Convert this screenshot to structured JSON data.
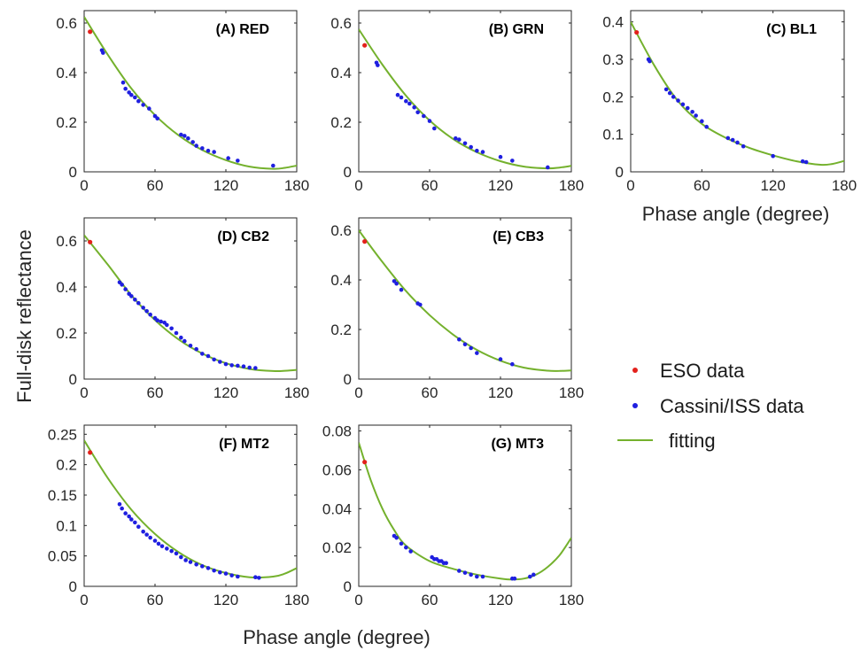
{
  "figure": {
    "ylabel": "Full-disk reflectance",
    "xlabel": "Phase angle (degree)"
  },
  "legend": {
    "placement": "right-middle",
    "entries": [
      {
        "label": "ESO data",
        "color": "#e3211c",
        "kind": "marker"
      },
      {
        "label": "Cassini/ISS data",
        "color": "#1f1fe0",
        "kind": "marker"
      },
      {
        "label": "fitting",
        "color": "#74b12d",
        "kind": "line"
      }
    ]
  },
  "colors": {
    "eso": "#e3211c",
    "cassini": "#1f1fe0",
    "fit": "#74b12d",
    "axis": "#262626"
  },
  "chart_data": [
    {
      "type": "scatter",
      "label": "(A) RED",
      "xlim": [
        0,
        180
      ],
      "ylim": [
        0,
        0.65
      ],
      "xticks": [
        0,
        60,
        120,
        180
      ],
      "yticks": [
        0,
        0.2,
        0.4,
        0.6
      ],
      "ytick_labels": [
        "0",
        "0.2",
        "0.4",
        "0.6"
      ],
      "show_xlabel": false,
      "eso": [
        [
          5,
          0.565
        ]
      ],
      "cassini": [
        [
          15,
          0.49
        ],
        [
          16,
          0.48
        ],
        [
          33,
          0.36
        ],
        [
          35,
          0.335
        ],
        [
          38,
          0.32
        ],
        [
          40,
          0.31
        ],
        [
          43,
          0.3
        ],
        [
          46,
          0.285
        ],
        [
          50,
          0.27
        ],
        [
          55,
          0.255
        ],
        [
          60,
          0.225
        ],
        [
          62,
          0.215
        ],
        [
          82,
          0.15
        ],
        [
          85,
          0.145
        ],
        [
          88,
          0.135
        ],
        [
          92,
          0.12
        ],
        [
          95,
          0.105
        ],
        [
          100,
          0.095
        ],
        [
          105,
          0.085
        ],
        [
          110,
          0.08
        ],
        [
          122,
          0.055
        ],
        [
          130,
          0.045
        ],
        [
          160,
          0.025
        ]
      ],
      "fit": [
        [
          0,
          0.625
        ],
        [
          20,
          0.472
        ],
        [
          40,
          0.336
        ],
        [
          60,
          0.229
        ],
        [
          80,
          0.147
        ],
        [
          100,
          0.088
        ],
        [
          120,
          0.047
        ],
        [
          140,
          0.021
        ],
        [
          160,
          0.012
        ],
        [
          170,
          0.016
        ],
        [
          180,
          0.025
        ]
      ]
    },
    {
      "type": "scatter",
      "label": "(B) GRN",
      "xlim": [
        0,
        180
      ],
      "ylim": [
        0,
        0.65
      ],
      "xticks": [
        0,
        60,
        120,
        180
      ],
      "yticks": [
        0,
        0.2,
        0.4,
        0.6
      ],
      "ytick_labels": [
        "0",
        "0.2",
        "0.4",
        "0.6"
      ],
      "show_xlabel": false,
      "eso": [
        [
          5,
          0.51
        ]
      ],
      "cassini": [
        [
          15,
          0.44
        ],
        [
          16,
          0.43
        ],
        [
          33,
          0.31
        ],
        [
          36,
          0.3
        ],
        [
          40,
          0.285
        ],
        [
          43,
          0.275
        ],
        [
          47,
          0.26
        ],
        [
          50,
          0.24
        ],
        [
          55,
          0.225
        ],
        [
          60,
          0.205
        ],
        [
          64,
          0.175
        ],
        [
          82,
          0.135
        ],
        [
          85,
          0.13
        ],
        [
          90,
          0.115
        ],
        [
          95,
          0.1
        ],
        [
          100,
          0.085
        ],
        [
          105,
          0.08
        ],
        [
          120,
          0.06
        ],
        [
          130,
          0.045
        ],
        [
          160,
          0.018
        ]
      ],
      "fit": [
        [
          0,
          0.575
        ],
        [
          20,
          0.432
        ],
        [
          40,
          0.307
        ],
        [
          60,
          0.207
        ],
        [
          80,
          0.132
        ],
        [
          100,
          0.079
        ],
        [
          120,
          0.043
        ],
        [
          140,
          0.021
        ],
        [
          160,
          0.014
        ],
        [
          170,
          0.017
        ],
        [
          180,
          0.024
        ]
      ]
    },
    {
      "type": "scatter",
      "label": "(C) BL1",
      "xlim": [
        0,
        180
      ],
      "ylim": [
        0,
        0.43
      ],
      "xticks": [
        0,
        60,
        120,
        180
      ],
      "yticks": [
        0,
        0.1,
        0.2,
        0.3,
        0.4
      ],
      "ytick_labels": [
        "0",
        "0.1",
        "0.2",
        "0.3",
        "0.4"
      ],
      "show_xlabel": true,
      "eso": [
        [
          5,
          0.372
        ]
      ],
      "cassini": [
        [
          15,
          0.3
        ],
        [
          16,
          0.295
        ],
        [
          30,
          0.22
        ],
        [
          33,
          0.21
        ],
        [
          36,
          0.2
        ],
        [
          40,
          0.19
        ],
        [
          44,
          0.18
        ],
        [
          48,
          0.17
        ],
        [
          52,
          0.16
        ],
        [
          55,
          0.15
        ],
        [
          60,
          0.135
        ],
        [
          64,
          0.12
        ],
        [
          82,
          0.09
        ],
        [
          86,
          0.085
        ],
        [
          90,
          0.078
        ],
        [
          95,
          0.068
        ],
        [
          120,
          0.042
        ],
        [
          145,
          0.028
        ],
        [
          148,
          0.026
        ]
      ],
      "fit": [
        [
          0,
          0.4
        ],
        [
          20,
          0.283
        ],
        [
          40,
          0.188
        ],
        [
          60,
          0.128
        ],
        [
          80,
          0.091
        ],
        [
          100,
          0.064
        ],
        [
          120,
          0.044
        ],
        [
          140,
          0.028
        ],
        [
          160,
          0.019
        ],
        [
          170,
          0.021
        ],
        [
          180,
          0.029
        ]
      ]
    },
    {
      "type": "scatter",
      "label": "(D) CB2",
      "xlim": [
        0,
        180
      ],
      "ylim": [
        0,
        0.7
      ],
      "xticks": [
        0,
        60,
        120,
        180
      ],
      "yticks": [
        0,
        0.2,
        0.4,
        0.6
      ],
      "ytick_labels": [
        "0",
        "0.2",
        "0.4",
        "0.6"
      ],
      "show_xlabel": false,
      "eso": [
        [
          5,
          0.595
        ]
      ],
      "cassini": [
        [
          30,
          0.42
        ],
        [
          32,
          0.41
        ],
        [
          35,
          0.39
        ],
        [
          38,
          0.37
        ],
        [
          40,
          0.36
        ],
        [
          43,
          0.345
        ],
        [
          46,
          0.33
        ],
        [
          50,
          0.31
        ],
        [
          53,
          0.295
        ],
        [
          56,
          0.28
        ],
        [
          60,
          0.265
        ],
        [
          62,
          0.255
        ],
        [
          65,
          0.25
        ],
        [
          68,
          0.245
        ],
        [
          70,
          0.235
        ],
        [
          74,
          0.22
        ],
        [
          78,
          0.2
        ],
        [
          82,
          0.18
        ],
        [
          85,
          0.165
        ],
        [
          90,
          0.145
        ],
        [
          95,
          0.13
        ],
        [
          100,
          0.11
        ],
        [
          105,
          0.1
        ],
        [
          110,
          0.085
        ],
        [
          115,
          0.075
        ],
        [
          120,
          0.065
        ],
        [
          125,
          0.06
        ],
        [
          130,
          0.058
        ],
        [
          135,
          0.055
        ],
        [
          140,
          0.05
        ],
        [
          145,
          0.048
        ]
      ],
      "fit": [
        [
          0,
          0.625
        ],
        [
          20,
          0.497
        ],
        [
          40,
          0.364
        ],
        [
          60,
          0.256
        ],
        [
          80,
          0.172
        ],
        [
          100,
          0.111
        ],
        [
          120,
          0.069
        ],
        [
          140,
          0.044
        ],
        [
          160,
          0.035
        ],
        [
          170,
          0.036
        ],
        [
          180,
          0.04
        ]
      ]
    },
    {
      "type": "scatter",
      "label": "(E) CB3",
      "xlim": [
        0,
        180
      ],
      "ylim": [
        0,
        0.65
      ],
      "xticks": [
        0,
        60,
        120,
        180
      ],
      "yticks": [
        0,
        0.2,
        0.4,
        0.6
      ],
      "ytick_labels": [
        "0",
        "0.2",
        "0.4",
        "0.6"
      ],
      "show_xlabel": true,
      "eso": [
        [
          5,
          0.555
        ]
      ],
      "cassini": [
        [
          30,
          0.395
        ],
        [
          32,
          0.385
        ],
        [
          36,
          0.36
        ],
        [
          50,
          0.305
        ],
        [
          52,
          0.3
        ],
        [
          85,
          0.16
        ],
        [
          90,
          0.14
        ],
        [
          95,
          0.125
        ],
        [
          100,
          0.105
        ],
        [
          120,
          0.08
        ],
        [
          130,
          0.06
        ]
      ],
      "fit": [
        [
          0,
          0.6
        ],
        [
          20,
          0.472
        ],
        [
          40,
          0.355
        ],
        [
          60,
          0.258
        ],
        [
          80,
          0.179
        ],
        [
          100,
          0.118
        ],
        [
          120,
          0.074
        ],
        [
          140,
          0.046
        ],
        [
          160,
          0.034
        ],
        [
          170,
          0.033
        ],
        [
          180,
          0.035
        ]
      ]
    },
    {
      "type": "scatter",
      "label": "(F) MT2",
      "xlim": [
        0,
        180
      ],
      "ylim": [
        0,
        0.265
      ],
      "xticks": [
        0,
        60,
        120,
        180
      ],
      "yticks": [
        0,
        0.05,
        0.1,
        0.15,
        0.2,
        0.25
      ],
      "ytick_labels": [
        "0",
        "0.05",
        "0.1",
        "0.15",
        "0.2",
        "0.25"
      ],
      "show_xlabel": false,
      "eso": [
        [
          5,
          0.22
        ]
      ],
      "cassini": [
        [
          30,
          0.135
        ],
        [
          32,
          0.128
        ],
        [
          35,
          0.12
        ],
        [
          38,
          0.115
        ],
        [
          40,
          0.11
        ],
        [
          43,
          0.105
        ],
        [
          46,
          0.098
        ],
        [
          50,
          0.09
        ],
        [
          53,
          0.085
        ],
        [
          56,
          0.08
        ],
        [
          60,
          0.075
        ],
        [
          63,
          0.07
        ],
        [
          66,
          0.066
        ],
        [
          70,
          0.062
        ],
        [
          74,
          0.058
        ],
        [
          78,
          0.054
        ],
        [
          82,
          0.048
        ],
        [
          86,
          0.043
        ],
        [
          90,
          0.04
        ],
        [
          95,
          0.036
        ],
        [
          100,
          0.033
        ],
        [
          105,
          0.03
        ],
        [
          110,
          0.026
        ],
        [
          115,
          0.023
        ],
        [
          120,
          0.021
        ],
        [
          125,
          0.018
        ],
        [
          130,
          0.016
        ],
        [
          145,
          0.015
        ],
        [
          148,
          0.014
        ]
      ],
      "fit": [
        [
          0,
          0.24
        ],
        [
          20,
          0.178
        ],
        [
          40,
          0.126
        ],
        [
          60,
          0.086
        ],
        [
          80,
          0.056
        ],
        [
          100,
          0.035
        ],
        [
          120,
          0.022
        ],
        [
          140,
          0.015
        ],
        [
          160,
          0.016
        ],
        [
          170,
          0.021
        ],
        [
          180,
          0.03
        ]
      ]
    },
    {
      "type": "scatter",
      "label": "(G) MT3",
      "xlim": [
        0,
        180
      ],
      "ylim": [
        0,
        0.083
      ],
      "xticks": [
        0,
        60,
        120,
        180
      ],
      "yticks": [
        0,
        0.02,
        0.04,
        0.06,
        0.08
      ],
      "ytick_labels": [
        "0",
        "0.02",
        "0.04",
        "0.06",
        "0.08"
      ],
      "show_xlabel": false,
      "eso": [
        [
          5,
          0.064
        ]
      ],
      "cassini": [
        [
          30,
          0.026
        ],
        [
          32,
          0.025
        ],
        [
          36,
          0.022
        ],
        [
          40,
          0.02
        ],
        [
          44,
          0.018
        ],
        [
          62,
          0.015
        ],
        [
          64,
          0.014
        ],
        [
          66,
          0.014
        ],
        [
          68,
          0.013
        ],
        [
          70,
          0.013
        ],
        [
          72,
          0.012
        ],
        [
          74,
          0.012
        ],
        [
          85,
          0.008
        ],
        [
          90,
          0.007
        ],
        [
          95,
          0.006
        ],
        [
          100,
          0.005
        ],
        [
          105,
          0.005
        ],
        [
          130,
          0.004
        ],
        [
          132,
          0.004
        ],
        [
          145,
          0.005
        ],
        [
          148,
          0.006
        ]
      ],
      "fit": [
        [
          0,
          0.074
        ],
        [
          10,
          0.055
        ],
        [
          20,
          0.04
        ],
        [
          30,
          0.029
        ],
        [
          40,
          0.021
        ],
        [
          60,
          0.013
        ],
        [
          80,
          0.009
        ],
        [
          100,
          0.006
        ],
        [
          120,
          0.004
        ],
        [
          130,
          0.0035
        ],
        [
          140,
          0.004
        ],
        [
          150,
          0.006
        ],
        [
          160,
          0.01
        ],
        [
          170,
          0.016
        ],
        [
          180,
          0.025
        ]
      ]
    }
  ]
}
